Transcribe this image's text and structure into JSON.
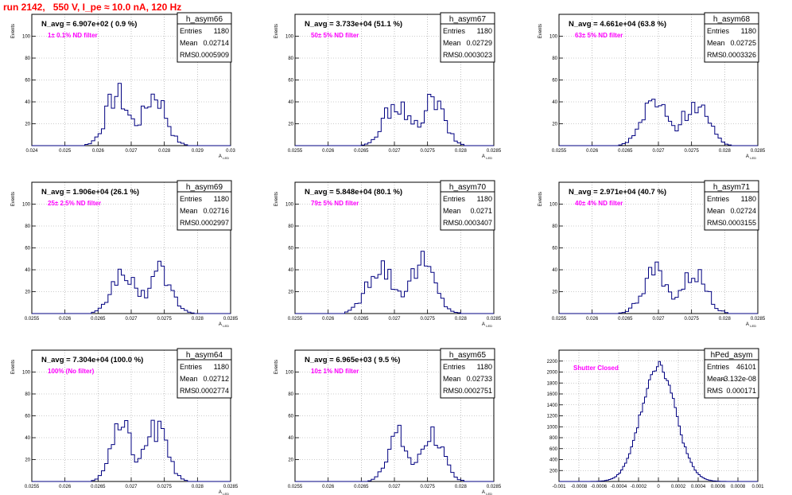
{
  "run_title": "run 2142,   550 V, I_pe ≈ 10.0 nA, 120 Hz",
  "colors": {
    "hist": "#000080",
    "title": "#ff0000",
    "label": "#ff00ff",
    "frame": "#000000",
    "grid": "#999999"
  },
  "chart_data": [
    {
      "type": "bar",
      "name": "h_asym66",
      "xlabel": "A_LED",
      "ylabel": "Events",
      "navg": "N_avg = 6.907e+02 ( 0.9 %)",
      "filter": "1± 0.1% ND filter",
      "stats": {
        "entries": "1180",
        "mean": "0.02714",
        "rms": "0.0005909"
      },
      "xlim": [
        0.024,
        0.03
      ],
      "ylim": [
        0,
        120
      ],
      "x_ticks": [
        "0.024",
        "0.025",
        "0.026",
        "0.027",
        "0.028",
        "0.029",
        "0.03"
      ],
      "y_ticks": [
        "20",
        "40",
        "60",
        "80",
        "100"
      ],
      "center": 0.02714,
      "width": 0.0006,
      "peak": 58
    },
    {
      "type": "bar",
      "name": "h_asym67",
      "xlabel": "A_LED",
      "ylabel": "Events",
      "navg": "N_avg = 3.733e+04 (51.1 %)",
      "filter": "50± 5% ND filter",
      "stats": {
        "entries": "1180",
        "mean": "0.02729",
        "rms": "0.0003023"
      },
      "xlim": [
        0.0255,
        0.0285
      ],
      "ylim": [
        0,
        120
      ],
      "x_ticks": [
        "0.0255",
        "0.026",
        "0.0265",
        "0.027",
        "0.0275",
        "0.028",
        "0.0285"
      ],
      "y_ticks": [
        "20",
        "40",
        "60",
        "80",
        "100"
      ],
      "center": 0.0273,
      "width": 0.0003,
      "peak": 50
    },
    {
      "type": "bar",
      "name": "h_asym68",
      "xlabel": "A_LED",
      "ylabel": "Events",
      "navg": "N_avg = 4.661e+04 (63.8 %)",
      "filter": "63± 5% ND filter",
      "stats": {
        "entries": "1180",
        "mean": "0.02725",
        "rms": "0.0003326"
      },
      "xlim": [
        0.0255,
        0.0285
      ],
      "ylim": [
        0,
        120
      ],
      "x_ticks": [
        "0.0255",
        "0.026",
        "0.0265",
        "0.027",
        "0.0275",
        "0.028",
        "0.0285"
      ],
      "y_ticks": [
        "20",
        "40",
        "60",
        "80",
        "100"
      ],
      "center": 0.02725,
      "width": 0.00033,
      "peak": 50
    },
    {
      "type": "bar",
      "name": "h_asym69",
      "xlabel": "A_LED",
      "ylabel": "Events",
      "navg": "N_avg = 1.906e+04 (26.1 %)",
      "filter": "25± 2.5% ND filter",
      "stats": {
        "entries": "1180",
        "mean": "0.02716",
        "rms": "0.0002997"
      },
      "xlim": [
        0.0255,
        0.0285
      ],
      "ylim": [
        0,
        120
      ],
      "x_ticks": [
        "0.0255",
        "0.026",
        "0.0265",
        "0.027",
        "0.0275",
        "0.028",
        "0.0285"
      ],
      "y_ticks": [
        "20",
        "40",
        "60",
        "80",
        "100"
      ],
      "center": 0.02716,
      "width": 0.0003,
      "peak": 47
    },
    {
      "type": "bar",
      "name": "h_asym70",
      "xlabel": "A_LED",
      "ylabel": "Events",
      "navg": "N_avg = 5.848e+04 (80.1 %)",
      "filter": "79± 5% ND filter",
      "stats": {
        "entries": "1180",
        "mean": "0.0271",
        "rms": "0.0003407"
      },
      "xlim": [
        0.0255,
        0.0285
      ],
      "ylim": [
        0,
        120
      ],
      "x_ticks": [
        "0.0255",
        "0.026",
        "0.0265",
        "0.027",
        "0.0275",
        "0.028",
        "0.0285"
      ],
      "y_ticks": [
        "20",
        "40",
        "60",
        "80",
        "100"
      ],
      "center": 0.0271,
      "width": 0.00034,
      "peak": 57
    },
    {
      "type": "bar",
      "name": "h_asym71",
      "xlabel": "A_LED",
      "ylabel": "Events",
      "navg": "N_avg = 2.971e+04 (40.7 %)",
      "filter": "40± 4% ND filter",
      "stats": {
        "entries": "1180",
        "mean": "0.02724",
        "rms": "0.0003155"
      },
      "xlim": [
        0.0255,
        0.0285
      ],
      "ylim": [
        0,
        120
      ],
      "x_ticks": [
        "0.0255",
        "0.026",
        "0.0265",
        "0.027",
        "0.0275",
        "0.028",
        "0.0285"
      ],
      "y_ticks": [
        "20",
        "40",
        "60",
        "80",
        "100"
      ],
      "center": 0.02724,
      "width": 0.00032,
      "peak": 47
    },
    {
      "type": "bar",
      "name": "h_asym64",
      "xlabel": "A_LED",
      "ylabel": "Events",
      "navg": "N_avg = 7.304e+04 (100.0 %)",
      "filter": "100% (No filter)",
      "stats": {
        "entries": "1180",
        "mean": "0.02712",
        "rms": "0.0002774"
      },
      "xlim": [
        0.0255,
        0.0285
      ],
      "ylim": [
        0,
        120
      ],
      "x_ticks": [
        "0.0255",
        "0.026",
        "0.0265",
        "0.027",
        "0.0275",
        "0.028",
        "0.0285"
      ],
      "y_ticks": [
        "20",
        "40",
        "60",
        "80",
        "100"
      ],
      "center": 0.02712,
      "width": 0.00028,
      "peak": 60
    },
    {
      "type": "bar",
      "name": "h_asym65",
      "xlabel": "A_LED",
      "ylabel": "Events",
      "navg": "N_avg = 6.965e+03 ( 9.5 %)",
      "filter": "10± 1% ND filter",
      "stats": {
        "entries": "1180",
        "mean": "0.02733",
        "rms": "0.0002751"
      },
      "xlim": [
        0.0255,
        0.0285
      ],
      "ylim": [
        0,
        120
      ],
      "x_ticks": [
        "0.0255",
        "0.026",
        "0.0265",
        "0.027",
        "0.0275",
        "0.028",
        "0.0285"
      ],
      "y_ticks": [
        "20",
        "40",
        "60",
        "80",
        "100"
      ],
      "center": 0.02733,
      "width": 0.00028,
      "peak": 53
    },
    {
      "type": "bar",
      "name": "hPed_asym",
      "xlabel": "",
      "ylabel": "",
      "navg": "",
      "filter": "Shutter Closed",
      "stats": {
        "entries": "46101",
        "mean": "-3.132e-08",
        "rms": "0.000171"
      },
      "xlim": [
        -0.001,
        0.001
      ],
      "ylim": [
        0,
        2400
      ],
      "x_ticks": [
        "-0.001",
        "-0.0008",
        "-0.0006",
        "-0.0004",
        "-0.0002",
        "0",
        "0.0002",
        "0.0004",
        "0.0006",
        "0.0008",
        "0.001"
      ],
      "y_ticks": [
        "200",
        "400",
        "600",
        "800",
        "1000",
        "1200",
        "1400",
        "1600",
        "1800",
        "2000",
        "2200"
      ],
      "center": 0.0,
      "width": 0.000171,
      "peak": 2150
    }
  ]
}
